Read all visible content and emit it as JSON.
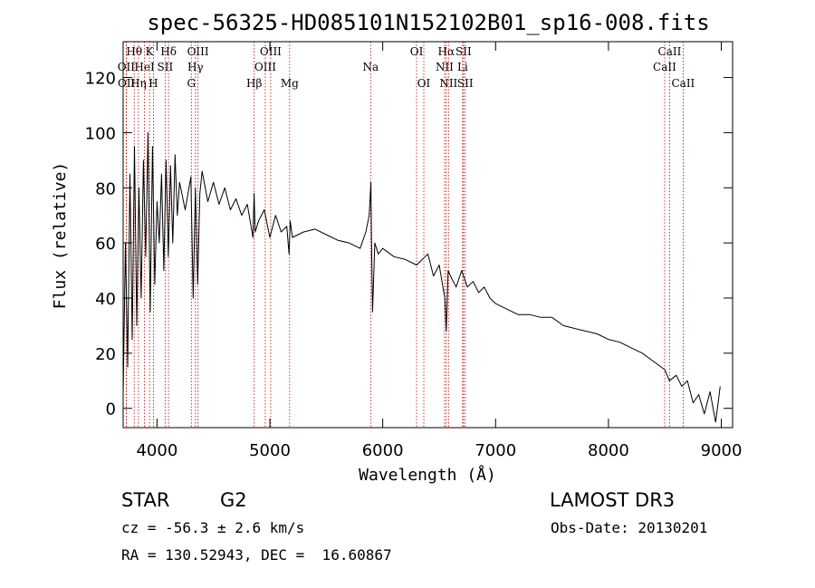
{
  "colors": {
    "spectrum": "#000000",
    "line_marker": "#c00000",
    "axis": "#000000",
    "background": "#ffffff"
  },
  "info": {
    "object_class": "STAR",
    "subclass": "G2",
    "survey": "LAMOST DR3",
    "redshift_text": "cz = -56.3 ± 2.6 km/s",
    "obs_date_text": "Obs-Date: 20130201",
    "coords_text": "RA = 130.52943, DEC =  16.60867"
  },
  "chart_data": {
    "type": "line",
    "title": "spec-56325-HD085101N152102B01_sp16-008.fits",
    "xlabel": "Wavelength (Å)",
    "ylabel": "Flux (relative)",
    "xlim": [
      3700,
      9100
    ],
    "ylim": [
      -7,
      133
    ],
    "xticks": [
      4000,
      5000,
      6000,
      7000,
      8000,
      9000
    ],
    "yticks": [
      0,
      20,
      40,
      60,
      80,
      100,
      120
    ],
    "series": [
      {
        "name": "flux",
        "x": [
          3700,
          3720,
          3740,
          3760,
          3780,
          3800,
          3820,
          3840,
          3860,
          3880,
          3900,
          3920,
          3940,
          3960,
          3980,
          4000,
          4020,
          4040,
          4060,
          4080,
          4100,
          4120,
          4140,
          4160,
          4180,
          4200,
          4250,
          4300,
          4320,
          4340,
          4360,
          4380,
          4400,
          4450,
          4500,
          4550,
          4600,
          4650,
          4700,
          4750,
          4800,
          4850,
          4860,
          4870,
          4900,
          4950,
          5000,
          5050,
          5100,
          5150,
          5170,
          5180,
          5200,
          5300,
          5400,
          5500,
          5600,
          5700,
          5800,
          5850,
          5880,
          5895,
          5900,
          5910,
          5930,
          5960,
          6000,
          6100,
          6200,
          6300,
          6400,
          6450,
          6500,
          6550,
          6563,
          6580,
          6600,
          6650,
          6700,
          6750,
          6800,
          6850,
          6900,
          6950,
          7000,
          7100,
          7200,
          7300,
          7400,
          7500,
          7600,
          7700,
          7800,
          7900,
          8000,
          8100,
          8200,
          8300,
          8400,
          8500,
          8540,
          8600,
          8650,
          8700,
          8750,
          8800,
          8850,
          8900,
          8950,
          8990
        ],
        "y": [
          5,
          60,
          15,
          85,
          25,
          95,
          30,
          80,
          40,
          90,
          55,
          100,
          35,
          95,
          45,
          75,
          60,
          85,
          50,
          90,
          55,
          88,
          60,
          92,
          70,
          82,
          72,
          84,
          40,
          80,
          45,
          78,
          86,
          75,
          82,
          74,
          80,
          72,
          76,
          70,
          74,
          62,
          78,
          64,
          68,
          72,
          62,
          70,
          64,
          66,
          56,
          68,
          62,
          64,
          65,
          63,
          61,
          60,
          58,
          64,
          70,
          82,
          62,
          35,
          60,
          56,
          58,
          55,
          54,
          52,
          56,
          48,
          52,
          40,
          28,
          50,
          48,
          44,
          50,
          44,
          46,
          42,
          44,
          40,
          38,
          36,
          34,
          34,
          33,
          33,
          30,
          29,
          28,
          27,
          25,
          24,
          22,
          20,
          17,
          14,
          10,
          12,
          8,
          10,
          2,
          5,
          -2,
          6,
          -5,
          8
        ]
      }
    ],
    "line_markers": [
      {
        "label": "Hθ",
        "wavelength": 3798,
        "row": 1
      },
      {
        "label": "K",
        "wavelength": 3934,
        "row": 1
      },
      {
        "label": "Hδ",
        "wavelength": 4102,
        "row": 1
      },
      {
        "label": "OIII",
        "wavelength": 4363,
        "row": 1
      },
      {
        "label": "OIII",
        "wavelength": 5007,
        "row": 1
      },
      {
        "label": "CaII",
        "wavelength": 8542,
        "row": 1
      },
      {
        "label": "OI",
        "wavelength": 6300,
        "row": 1
      },
      {
        "label": "Hα",
        "wavelength": 6563,
        "row": 1
      },
      {
        "label": "SII",
        "wavelength": 6716,
        "row": 1
      },
      {
        "label": "OII",
        "wavelength": 3727,
        "row": 2
      },
      {
        "label": "HeI",
        "wavelength": 3889,
        "row": 2
      },
      {
        "label": "SII",
        "wavelength": 4072,
        "row": 2
      },
      {
        "label": "Hγ",
        "wavelength": 4340,
        "row": 2
      },
      {
        "label": "OIII",
        "wavelength": 4959,
        "row": 2
      },
      {
        "label": "Na",
        "wavelength": 5893,
        "row": 2
      },
      {
        "label": "NII",
        "wavelength": 6548,
        "row": 2
      },
      {
        "label": "Li",
        "wavelength": 6708,
        "row": 2
      },
      {
        "label": "CaII",
        "wavelength": 8498,
        "row": 2
      },
      {
        "label": "OII",
        "wavelength": 3729,
        "row": 3
      },
      {
        "label": "Hη",
        "wavelength": 3835,
        "row": 3
      },
      {
        "label": "H",
        "wavelength": 3968,
        "row": 3
      },
      {
        "label": "G",
        "wavelength": 4304,
        "row": 3
      },
      {
        "label": "Hβ",
        "wavelength": 4861,
        "row": 3
      },
      {
        "label": "Mg",
        "wavelength": 5175,
        "row": 3
      },
      {
        "label": "OI",
        "wavelength": 6364,
        "row": 3
      },
      {
        "label": "NII",
        "wavelength": 6583,
        "row": 3
      },
      {
        "label": "SII",
        "wavelength": 6731,
        "row": 3
      },
      {
        "label": "CaII",
        "wavelength": 8662,
        "row": 3
      }
    ]
  }
}
